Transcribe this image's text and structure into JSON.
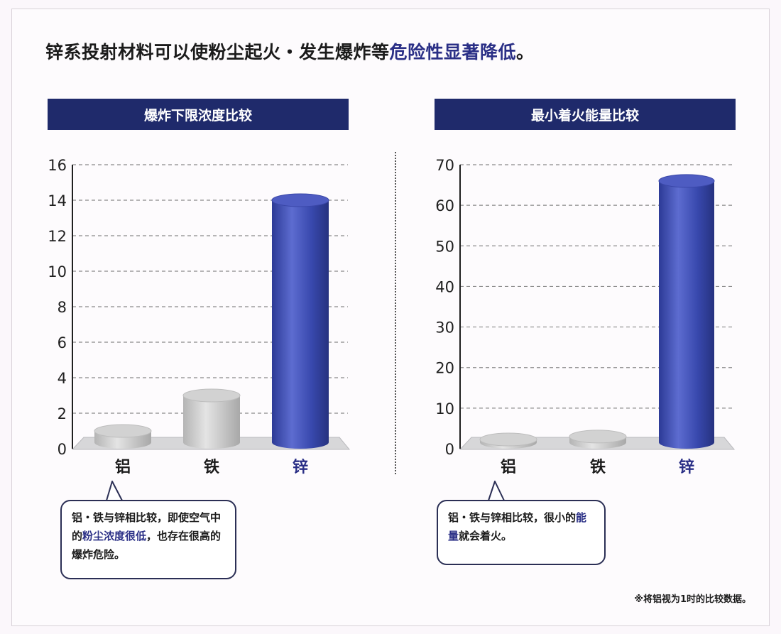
{
  "headline": {
    "prefix": "锌系投射材料可以使粉尘起火・发生爆炸等",
    "highlight": "危险性显著降低",
    "suffix": "。"
  },
  "callouts": {
    "left": {
      "before": "铝・铁与锌相比较，即使空气中的",
      "highlight": "粉尘浓度很低",
      "after": "，也存在很高的爆炸危险。"
    },
    "right": {
      "before": "铝・铁与锌相比较，很小的",
      "highlight": "能量",
      "after": "就会着火。"
    }
  },
  "footnote": "※将铝视为1时的比较数据。",
  "colors": {
    "title_bar": "#1f2a6b",
    "zinc_bar": "#3b4ab0",
    "other_bars": "#c9c9c9",
    "highlight_text": "#2a2f86"
  },
  "chart_data": [
    {
      "type": "bar",
      "title": "爆炸下限浓度比较",
      "categories": [
        "铝",
        "铁",
        "锌"
      ],
      "values": [
        1,
        3,
        14
      ],
      "ylim": [
        0,
        16
      ],
      "yticks": [
        0,
        2,
        4,
        6,
        8,
        10,
        12,
        14,
        16
      ],
      "grid": true
    },
    {
      "type": "bar",
      "title": "最小着火能量比较",
      "categories": [
        "铝",
        "铁",
        "锌"
      ],
      "values": [
        1,
        3,
        66
      ],
      "ylim": [
        0,
        70
      ],
      "yticks": [
        0,
        10,
        20,
        30,
        40,
        50,
        60,
        70
      ],
      "grid": true
    }
  ]
}
